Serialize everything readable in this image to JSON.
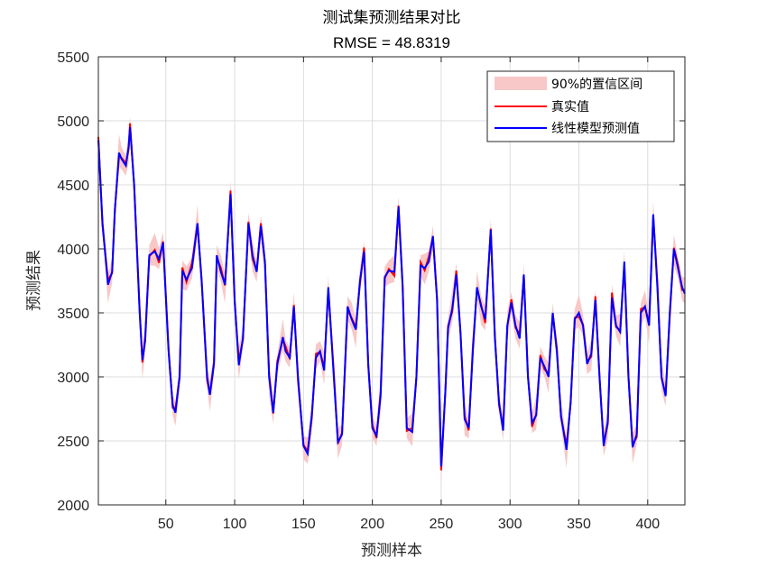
{
  "chart_data": {
    "type": "line",
    "title": "测试集预测结果对比",
    "subtitle": "RMSE = 48.8319",
    "xlabel": "预测样本",
    "ylabel": "预测结果",
    "xlim": [
      1,
      427
    ],
    "ylim": [
      2000,
      5500
    ],
    "xticks": [
      50,
      100,
      150,
      200,
      250,
      300,
      350,
      400
    ],
    "yticks": [
      2000,
      2500,
      3000,
      3500,
      4000,
      4500,
      5000,
      5500
    ],
    "grid": true,
    "legend_position": "top-right",
    "legend": [
      "90%的置信区间",
      "真实值",
      "线性模型预测值"
    ],
    "colors": {
      "band": "#f8c8c8",
      "actual": "#ff0000",
      "predicted": "#0000ff"
    },
    "band_halfwidth_approx": 80,
    "predicted_anchor_points": {
      "x": [
        1,
        4,
        8,
        11,
        13,
        16,
        18,
        21,
        23,
        24,
        27,
        31,
        33,
        35,
        38,
        42,
        45,
        48,
        52,
        55,
        57,
        60,
        62,
        65,
        69,
        73,
        76,
        80,
        82,
        85,
        87,
        90,
        93,
        97,
        100,
        103,
        106,
        110,
        113,
        116,
        119,
        122,
        125,
        128,
        131,
        135,
        137,
        140,
        143,
        146,
        150,
        153,
        156,
        159,
        162,
        165,
        168,
        172,
        175,
        178,
        182,
        185,
        188,
        191,
        194,
        197,
        200,
        203,
        206,
        209,
        212,
        216,
        219,
        222,
        225,
        229,
        232,
        235,
        238,
        241,
        244,
        247,
        250,
        253,
        255,
        258,
        261,
        264,
        267,
        270,
        273,
        276,
        279,
        282,
        286,
        289,
        292,
        295,
        298,
        301,
        304,
        307,
        310,
        313,
        316,
        319,
        322,
        325,
        328,
        331,
        334,
        337,
        341,
        344,
        347,
        350,
        353,
        356,
        359,
        362,
        365,
        368,
        371,
        374,
        377,
        380,
        383,
        386,
        389,
        392,
        395,
        398,
        401,
        404,
        407,
        410,
        413,
        416,
        419,
        422,
        425,
        427
      ],
      "y": [
        4850,
        4200,
        3720,
        3820,
        4300,
        4750,
        4700,
        4650,
        4800,
        4950,
        4500,
        3500,
        3130,
        3280,
        3950,
        3980,
        3920,
        4050,
        3200,
        2780,
        2720,
        3000,
        3830,
        3760,
        3850,
        4200,
        3750,
        3000,
        2860,
        3100,
        3950,
        3820,
        3720,
        4430,
        3600,
        3090,
        3300,
        4200,
        3950,
        3820,
        4180,
        3900,
        3000,
        2720,
        3100,
        3310,
        3200,
        3150,
        3550,
        3000,
        2460,
        2400,
        2700,
        3150,
        3200,
        3050,
        3700,
        3000,
        2490,
        2550,
        3550,
        3450,
        3370,
        3750,
        3980,
        3100,
        2600,
        2540,
        2850,
        3780,
        3830,
        3820,
        4330,
        3700,
        2600,
        2570,
        3000,
        3870,
        3850,
        3900,
        4100,
        3600,
        2300,
        2880,
        3380,
        3530,
        3800,
        3350,
        2670,
        2600,
        3200,
        3700,
        3550,
        3450,
        4150,
        3300,
        2800,
        2580,
        3400,
        3580,
        3400,
        3300,
        3800,
        3000,
        2640,
        2700,
        3150,
        3080,
        3000,
        3500,
        3200,
        2700,
        2430,
        2800,
        3450,
        3500,
        3400,
        3100,
        3180,
        3600,
        3000,
        2460,
        2650,
        3620,
        3400,
        3350,
        3900,
        3000,
        2450,
        2550,
        3500,
        3550,
        3400,
        4270,
        3700,
        3000,
        2850,
        3500,
        4000,
        3850,
        3700,
        3650
      ]
    }
  }
}
